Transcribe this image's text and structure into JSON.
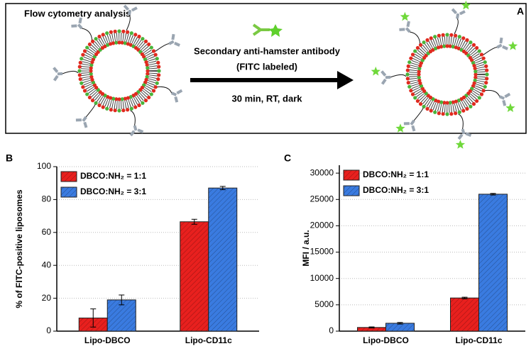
{
  "panel_a": {
    "label": "A",
    "title": "Flow cytometry analysis",
    "reagent_lines": [
      "Secondary anti-hamster antibody",
      "(FITC labeled)"
    ],
    "condition": "30 min, RT, dark"
  },
  "chart_data": [
    {
      "type": "bar",
      "panel_label": "B",
      "ylabel": "% of FITC-positive liposomes",
      "categories": [
        "Lipo-DBCO",
        "Lipo-CD11c"
      ],
      "series": [
        {
          "name": "DBCO:NH₂ = 1:1",
          "color": "#e8201e",
          "values": [
            8,
            66.5
          ],
          "errors": [
            5.5,
            1.5
          ]
        },
        {
          "name": "DBCO:NH₂ = 3:1",
          "color": "#3a7be0",
          "values": [
            19,
            87
          ],
          "errors": [
            3,
            1
          ]
        }
      ],
      "ylim": [
        0,
        100
      ],
      "yticks": [
        0,
        20,
        40,
        60,
        80,
        100
      ],
      "grid": true,
      "legend": "upper left"
    },
    {
      "type": "bar",
      "panel_label": "C",
      "ylabel": "MFI / a.u.",
      "categories": [
        "Lipo-DBCO",
        "Lipo-CD11c"
      ],
      "series": [
        {
          "name": "DBCO:NH₂ = 1:1",
          "color": "#e8201e",
          "values": [
            700,
            6300
          ],
          "errors": [
            100,
            150
          ]
        },
        {
          "name": "DBCO:NH₂ = 3:1",
          "color": "#3a7be0",
          "values": [
            1500,
            26000
          ],
          "errors": [
            150,
            150
          ]
        }
      ],
      "ylim": [
        0,
        31500
      ],
      "yticks": [
        0,
        5000,
        10000,
        15000,
        20000,
        25000,
        30000
      ],
      "grid": true,
      "legend": "upper left"
    }
  ]
}
